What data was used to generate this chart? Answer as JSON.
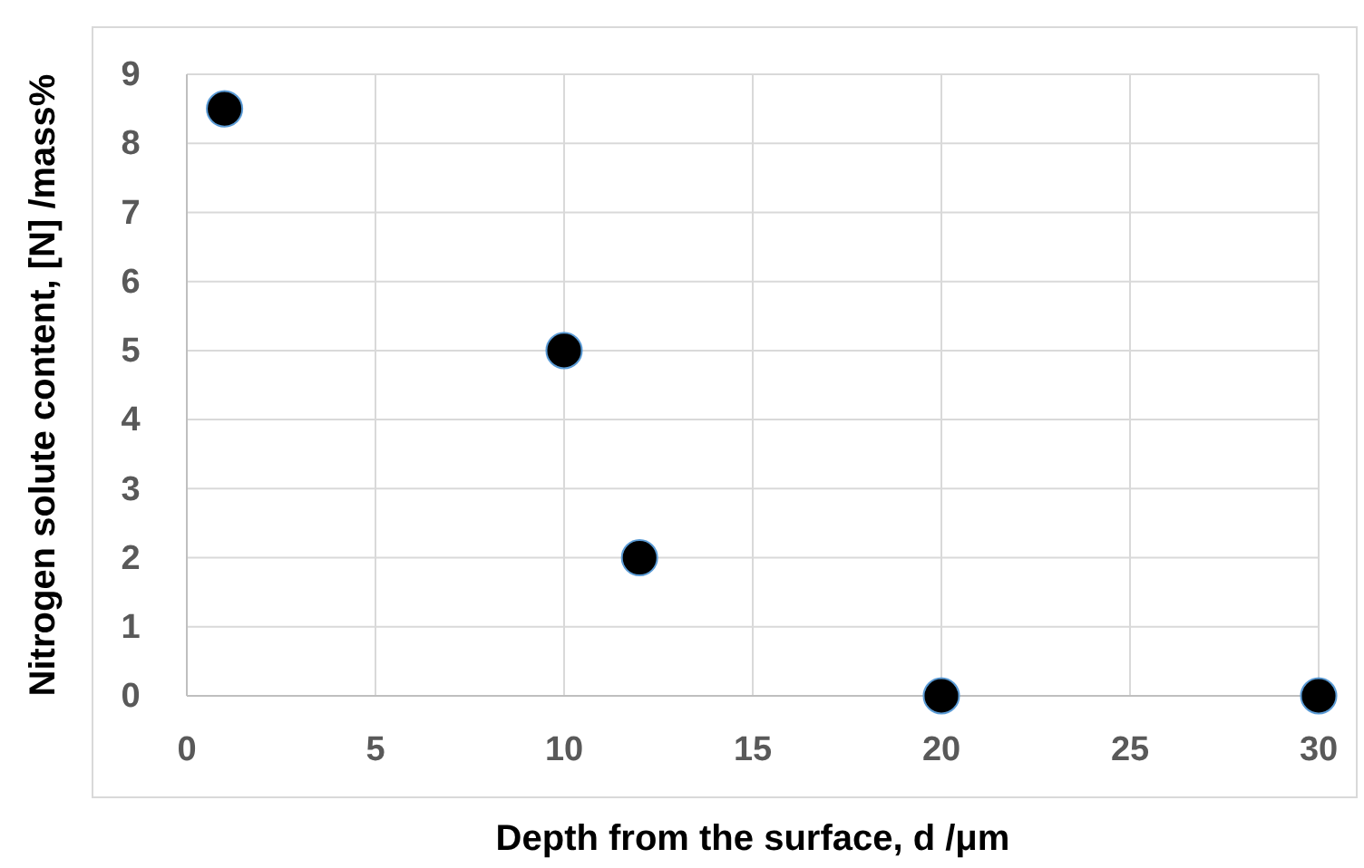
{
  "chart_data": {
    "type": "scatter",
    "xlabel": "Depth from the surface, d /μm",
    "ylabel": "Nitrogen solute content, [N] /mass%",
    "x": [
      1,
      10,
      12,
      20,
      30
    ],
    "series": [
      {
        "color": "#000000",
        "values": [
          8.5,
          5,
          2,
          0,
          0
        ]
      }
    ],
    "xlim": [
      0,
      30
    ],
    "xticks": [
      0,
      5,
      10,
      15,
      20,
      25,
      30
    ],
    "ylim": [
      0,
      9
    ],
    "yticks": [
      0,
      1,
      2,
      3,
      4,
      5,
      6,
      7,
      8,
      9
    ],
    "grid": true,
    "marker": "circle"
  }
}
